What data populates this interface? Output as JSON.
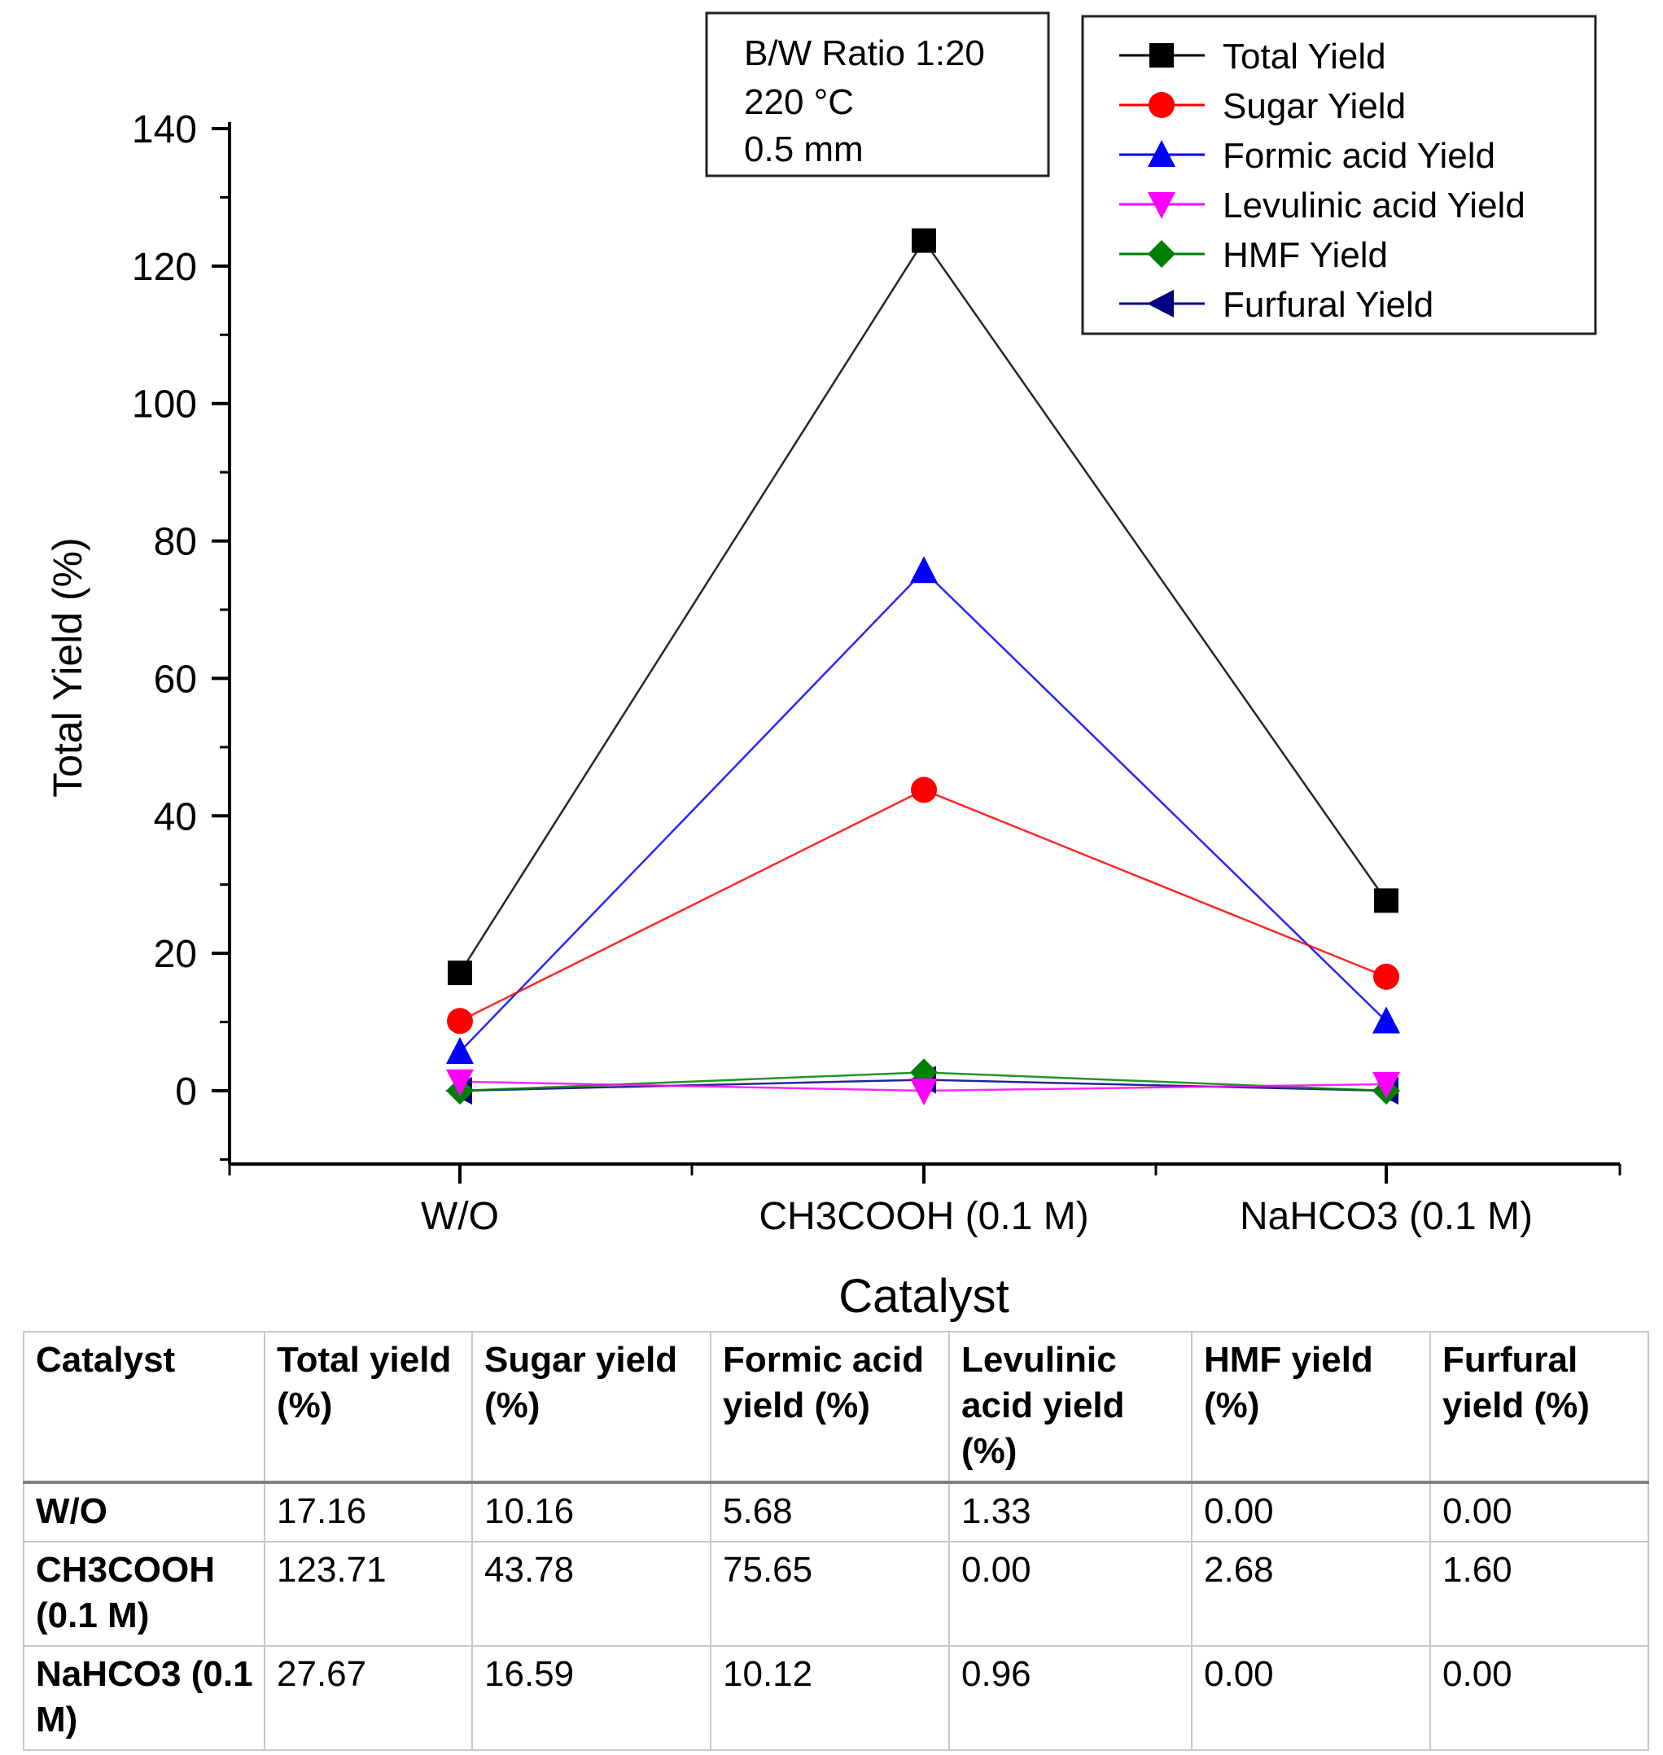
{
  "chart_data": {
    "type": "line",
    "xlabel": "Catalyst",
    "ylabel": "Total Yield (%)",
    "categories": [
      "W/O",
      "CH3COOH (0.1 M)",
      "NaHCO3 (0.1 M)"
    ],
    "ylim": [
      -10,
      140
    ],
    "yticks": [
      0,
      20,
      40,
      60,
      80,
      100,
      120,
      140
    ],
    "annotation": [
      "B/W Ratio 1:20",
      "220 °C",
      "0.5 mm"
    ],
    "legend_position": "top-right",
    "series": [
      {
        "name": "Total Yield",
        "color": "#000000",
        "marker": "square",
        "values": [
          17.16,
          123.71,
          27.67
        ]
      },
      {
        "name": "Sugar Yield",
        "color": "#ff0000",
        "marker": "circle",
        "values": [
          10.16,
          43.78,
          16.59
        ]
      },
      {
        "name": "Formic acid Yield",
        "color": "#0000ff",
        "marker": "triangle-up",
        "values": [
          5.68,
          75.65,
          10.12
        ]
      },
      {
        "name": "Levulinic acid Yield",
        "color": "#ff00ff",
        "marker": "triangle-down",
        "values": [
          1.33,
          0.0,
          0.96
        ]
      },
      {
        "name": "HMF Yield",
        "color": "#008000",
        "marker": "diamond",
        "values": [
          0.0,
          2.68,
          0.0
        ]
      },
      {
        "name": "Furfural Yield",
        "color": "#000080",
        "marker": "triangle-left",
        "values": [
          0.0,
          1.6,
          0.0
        ]
      }
    ]
  },
  "table": {
    "headers": [
      "Catalyst",
      "Total yield (%)",
      "Sugar yield (%)",
      "Formic acid yield (%)",
      "Levulinic acid yield (%)",
      "HMF yield (%)",
      "Furfural yield (%)"
    ],
    "rows": [
      [
        "W/O",
        "17.16",
        "10.16",
        "5.68",
        "1.33",
        "0.00",
        "0.00"
      ],
      [
        "CH3COOH (0.1 M)",
        "123.71",
        "43.78",
        "75.65",
        "0.00",
        "2.68",
        "1.60"
      ],
      [
        "NaHCO3 (0.1 M)",
        "27.67",
        "16.59",
        "10.12",
        "0.96",
        "0.00",
        "0.00"
      ]
    ]
  }
}
